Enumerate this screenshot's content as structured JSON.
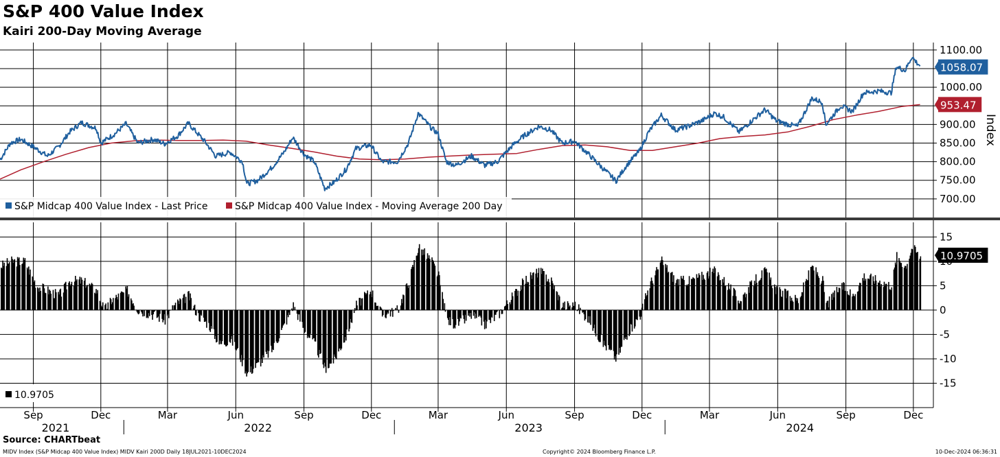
{
  "title": "S&P 400 Value Index",
  "subtitle": "Kairi 200-Day Moving Average",
  "source": "Source: CHARTbeat",
  "footer_left": "MIDV Index (S&P Midcap 400 Value Index) MIDV Kairi 200D  Daily 18JUL2021-10DEC2024",
  "footer_center": "Copyright© 2024 Bloomberg Finance L.P.",
  "footer_right": "10-Dec-2024 06:36:31",
  "chart_data": [
    {
      "type": "line",
      "panel": "top",
      "ylabel": "Index",
      "ylim": [
        650,
        1120
      ],
      "yticks": [
        700,
        750,
        800,
        850,
        900,
        950,
        1000,
        1050,
        1100
      ],
      "ytick_labels": [
        "700.00",
        "750.00",
        "800.00",
        "850.00",
        "900.00",
        "",
        "1000.00",
        "",
        "1100.00"
      ],
      "legend_position": "bottom-left",
      "series": [
        {
          "name": "S&P Midcap 400 Value Index - Last Price",
          "color": "#1f5f9e",
          "last_value": "1058.07",
          "points": [
            [
              "2021-07-18",
              805
            ],
            [
              "2021-08-01",
              850
            ],
            [
              "2021-08-15",
              860
            ],
            [
              "2021-09-01",
              840
            ],
            [
              "2021-09-20",
              815
            ],
            [
              "2021-10-05",
              840
            ],
            [
              "2021-10-20",
              880
            ],
            [
              "2021-11-05",
              905
            ],
            [
              "2021-11-25",
              890
            ],
            [
              "2021-12-01",
              850
            ],
            [
              "2021-12-20",
              875
            ],
            [
              "2022-01-04",
              902
            ],
            [
              "2022-01-20",
              850
            ],
            [
              "2022-02-10",
              860
            ],
            [
              "2022-02-25",
              848
            ],
            [
              "2022-03-15",
              870
            ],
            [
              "2022-03-29",
              903
            ],
            [
              "2022-04-20",
              855
            ],
            [
              "2022-05-05",
              815
            ],
            [
              "2022-05-25",
              825
            ],
            [
              "2022-06-10",
              800
            ],
            [
              "2022-06-16",
              740
            ],
            [
              "2022-07-01",
              750
            ],
            [
              "2022-07-20",
              785
            ],
            [
              "2022-08-05",
              825
            ],
            [
              "2022-08-17",
              865
            ],
            [
              "2022-09-01",
              820
            ],
            [
              "2022-09-15",
              800
            ],
            [
              "2022-09-29",
              728
            ],
            [
              "2022-10-12",
              745
            ],
            [
              "2022-10-28",
              780
            ],
            [
              "2022-11-10",
              835
            ],
            [
              "2022-11-30",
              845
            ],
            [
              "2022-12-15",
              800
            ],
            [
              "2023-01-05",
              800
            ],
            [
              "2023-01-20",
              850
            ],
            [
              "2023-02-02",
              930
            ],
            [
              "2023-02-20",
              890
            ],
            [
              "2023-03-01",
              875
            ],
            [
              "2023-03-12",
              800
            ],
            [
              "2023-03-25",
              790
            ],
            [
              "2023-04-15",
              815
            ],
            [
              "2023-05-03",
              790
            ],
            [
              "2023-05-20",
              800
            ],
            [
              "2023-06-10",
              845
            ],
            [
              "2023-06-25",
              870
            ],
            [
              "2023-07-15",
              895
            ],
            [
              "2023-07-31",
              885
            ],
            [
              "2023-08-15",
              850
            ],
            [
              "2023-09-01",
              855
            ],
            [
              "2023-09-20",
              820
            ],
            [
              "2023-10-05",
              790
            ],
            [
              "2023-10-27",
              748
            ],
            [
              "2023-11-10",
              790
            ],
            [
              "2023-11-28",
              830
            ],
            [
              "2023-12-10",
              880
            ],
            [
              "2023-12-27",
              925
            ],
            [
              "2024-01-15",
              885
            ],
            [
              "2024-02-01",
              895
            ],
            [
              "2024-02-20",
              910
            ],
            [
              "2024-03-08",
              930
            ],
            [
              "2024-03-20",
              920
            ],
            [
              "2024-04-10",
              880
            ],
            [
              "2024-04-30",
              915
            ],
            [
              "2024-05-15",
              940
            ],
            [
              "2024-05-30",
              910
            ],
            [
              "2024-06-15",
              900
            ],
            [
              "2024-06-28",
              895
            ],
            [
              "2024-07-17",
              970
            ],
            [
              "2024-07-31",
              960
            ],
            [
              "2024-08-05",
              900
            ],
            [
              "2024-08-25",
              950
            ],
            [
              "2024-09-10",
              935
            ],
            [
              "2024-09-25",
              985
            ],
            [
              "2024-10-15",
              990
            ],
            [
              "2024-11-01",
              985
            ],
            [
              "2024-11-08",
              1055
            ],
            [
              "2024-11-20",
              1045
            ],
            [
              "2024-11-29",
              1082
            ],
            [
              "2024-12-06",
              1065
            ],
            [
              "2024-12-10",
              1058.07
            ]
          ]
        },
        {
          "name": "S&P Midcap 400 Value Index - Moving Average 200 Day",
          "color": "#b01f2e",
          "last_value": "953.47",
          "points": [
            [
              "2021-07-18",
              753
            ],
            [
              "2021-08-15",
              778
            ],
            [
              "2021-09-15",
              800
            ],
            [
              "2021-10-15",
              820
            ],
            [
              "2021-11-15",
              838
            ],
            [
              "2021-12-15",
              850
            ],
            [
              "2022-01-15",
              856
            ],
            [
              "2022-02-15",
              858
            ],
            [
              "2022-03-15",
              857
            ],
            [
              "2022-04-15",
              857
            ],
            [
              "2022-05-15",
              858
            ],
            [
              "2022-06-15",
              855
            ],
            [
              "2022-07-15",
              845
            ],
            [
              "2022-08-15",
              836
            ],
            [
              "2022-09-15",
              826
            ],
            [
              "2022-10-15",
              815
            ],
            [
              "2022-11-15",
              807
            ],
            [
              "2022-12-15",
              805
            ],
            [
              "2023-01-15",
              807
            ],
            [
              "2023-02-15",
              812
            ],
            [
              "2023-03-15",
              815
            ],
            [
              "2023-04-15",
              818
            ],
            [
              "2023-05-15",
              820
            ],
            [
              "2023-06-15",
              822
            ],
            [
              "2023-07-15",
              833
            ],
            [
              "2023-08-15",
              843
            ],
            [
              "2023-09-15",
              845
            ],
            [
              "2023-10-15",
              840
            ],
            [
              "2023-11-15",
              830
            ],
            [
              "2023-12-15",
              830
            ],
            [
              "2024-01-15",
              840
            ],
            [
              "2024-02-15",
              850
            ],
            [
              "2024-03-15",
              862
            ],
            [
              "2024-04-15",
              868
            ],
            [
              "2024-05-15",
              872
            ],
            [
              "2024-06-15",
              880
            ],
            [
              "2024-07-15",
              895
            ],
            [
              "2024-08-15",
              913
            ],
            [
              "2024-09-15",
              925
            ],
            [
              "2024-10-15",
              935
            ],
            [
              "2024-11-15",
              948
            ],
            [
              "2024-12-10",
              953.47
            ]
          ]
        }
      ]
    },
    {
      "type": "bar",
      "panel": "bottom",
      "ylim": [
        -20,
        18
      ],
      "yticks": [
        -15,
        -10,
        -5,
        0,
        5,
        10,
        15
      ],
      "ytick_labels": [
        "-15",
        "-10",
        "-5",
        "0",
        "5",
        "10",
        "15"
      ],
      "legend_position": "bottom-left",
      "series": [
        {
          "name": "",
          "color": "#000000",
          "last_value": "10.9705",
          "points": [
            [
              "2021-07-18",
              9
            ],
            [
              "2021-08-01",
              10
            ],
            [
              "2021-08-20",
              10
            ],
            [
              "2021-09-05",
              5
            ],
            [
              "2021-09-20",
              4
            ],
            [
              "2021-10-05",
              3
            ],
            [
              "2021-10-20",
              6
            ],
            [
              "2021-11-05",
              6
            ],
            [
              "2021-11-25",
              4
            ],
            [
              "2021-12-05",
              0
            ],
            [
              "2021-12-15",
              2
            ],
            [
              "2022-01-05",
              4
            ],
            [
              "2022-01-20",
              0
            ],
            [
              "2022-02-10",
              -1
            ],
            [
              "2022-02-25",
              -2
            ],
            [
              "2022-03-10",
              1
            ],
            [
              "2022-03-29",
              3
            ],
            [
              "2022-04-10",
              -1
            ],
            [
              "2022-04-25",
              -3
            ],
            [
              "2022-05-10",
              -7
            ],
            [
              "2022-05-25",
              -6
            ],
            [
              "2022-06-05",
              -9
            ],
            [
              "2022-06-16",
              -13
            ],
            [
              "2022-07-01",
              -11
            ],
            [
              "2022-07-20",
              -8
            ],
            [
              "2022-08-05",
              -3
            ],
            [
              "2022-08-17",
              1
            ],
            [
              "2022-09-01",
              -4
            ],
            [
              "2022-09-15",
              -7
            ],
            [
              "2022-09-29",
              -12
            ],
            [
              "2022-10-12",
              -10
            ],
            [
              "2022-10-28",
              -5
            ],
            [
              "2022-11-10",
              1
            ],
            [
              "2022-11-30",
              4
            ],
            [
              "2022-12-15",
              -1
            ],
            [
              "2023-01-05",
              0
            ],
            [
              "2023-01-20",
              6
            ],
            [
              "2023-02-02",
              13
            ],
            [
              "2023-02-20",
              10
            ],
            [
              "2023-03-01",
              7
            ],
            [
              "2023-03-12",
              -2
            ],
            [
              "2023-03-25",
              -3
            ],
            [
              "2023-04-15",
              -1
            ],
            [
              "2023-05-03",
              -3
            ],
            [
              "2023-05-20",
              -1
            ],
            [
              "2023-06-10",
              3
            ],
            [
              "2023-06-25",
              6
            ],
            [
              "2023-07-15",
              8
            ],
            [
              "2023-07-31",
              6
            ],
            [
              "2023-08-15",
              1
            ],
            [
              "2023-09-01",
              1
            ],
            [
              "2023-09-20",
              -2
            ],
            [
              "2023-10-05",
              -6
            ],
            [
              "2023-10-27",
              -10
            ],
            [
              "2023-11-10",
              -5
            ],
            [
              "2023-11-28",
              -1
            ],
            [
              "2023-12-10",
              5
            ],
            [
              "2023-12-27",
              10
            ],
            [
              "2024-01-15",
              6
            ],
            [
              "2024-02-01",
              6
            ],
            [
              "2024-02-20",
              7
            ],
            [
              "2024-03-08",
              8
            ],
            [
              "2024-03-20",
              6
            ],
            [
              "2024-04-10",
              2
            ],
            [
              "2024-04-30",
              6
            ],
            [
              "2024-05-15",
              8
            ],
            [
              "2024-05-30",
              4
            ],
            [
              "2024-06-15",
              3
            ],
            [
              "2024-06-28",
              2
            ],
            [
              "2024-07-17",
              9
            ],
            [
              "2024-07-31",
              6
            ],
            [
              "2024-08-05",
              1
            ],
            [
              "2024-08-25",
              5
            ],
            [
              "2024-09-10",
              3
            ],
            [
              "2024-09-25",
              7
            ],
            [
              "2024-10-15",
              6
            ],
            [
              "2024-11-01",
              5
            ],
            [
              "2024-11-08",
              11
            ],
            [
              "2024-11-20",
              9
            ],
            [
              "2024-11-29",
              13
            ],
            [
              "2024-12-06",
              11.5
            ],
            [
              "2024-12-10",
              10.97
            ]
          ]
        }
      ]
    }
  ],
  "xaxis": {
    "range": [
      "2021-07-18",
      "2024-12-28"
    ],
    "ticks": [
      {
        "date": "2021-09-01",
        "label": "Sep"
      },
      {
        "date": "2021-12-01",
        "label": "Dec"
      },
      {
        "date": "2022-03-01",
        "label": "Mar"
      },
      {
        "date": "2022-06-01",
        "label": "Jun"
      },
      {
        "date": "2022-09-01",
        "label": "Sep"
      },
      {
        "date": "2022-12-01",
        "label": "Dec"
      },
      {
        "date": "2023-03-01",
        "label": "Mar"
      },
      {
        "date": "2023-06-01",
        "label": "Jun"
      },
      {
        "date": "2023-09-01",
        "label": "Sep"
      },
      {
        "date": "2023-12-01",
        "label": "Dec"
      },
      {
        "date": "2024-03-01",
        "label": "Mar"
      },
      {
        "date": "2024-06-01",
        "label": "Jun"
      },
      {
        "date": "2024-09-01",
        "label": "Sep"
      },
      {
        "date": "2024-12-01",
        "label": "Dec"
      }
    ],
    "years": [
      {
        "label": "2021",
        "center": "2021-10-01",
        "end": "2022-01-01"
      },
      {
        "label": "2022",
        "center": "2022-07-01",
        "end": "2023-01-01"
      },
      {
        "label": "2023",
        "center": "2023-07-01",
        "end": "2024-01-01"
      },
      {
        "label": "2024",
        "center": "2024-07-01",
        "end": "2025-01-01"
      }
    ]
  }
}
